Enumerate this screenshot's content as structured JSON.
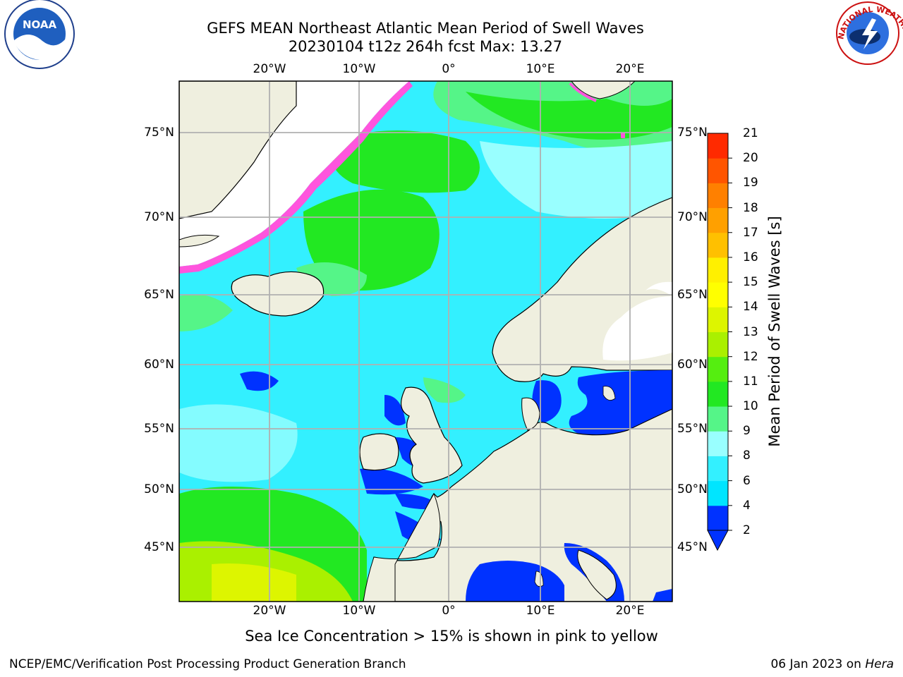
{
  "title": {
    "line1": "GEFS MEAN Northeast Atlantic Mean Period of Swell Waves",
    "line2": "20230104 t12z 264h fcst   Max: 13.27"
  },
  "axes": {
    "lon_labels": [
      "20°W",
      "10°W",
      "0°",
      "10°E",
      "20°E"
    ],
    "lat_labels": [
      "75°N",
      "70°N",
      "65°N",
      "60°N",
      "55°N",
      "50°N",
      "45°N"
    ]
  },
  "colorbar": {
    "title": "Mean Period of Swell Waves [s]",
    "ticks": [
      "2",
      "4",
      "6",
      "8",
      "9",
      "10",
      "11",
      "12",
      "13",
      "14",
      "15",
      "16",
      "17",
      "18",
      "19",
      "20",
      "21"
    ],
    "colors": [
      "#0032ff",
      "#00e5ff",
      "#33f0ff",
      "#99ffff",
      "#55f588",
      "#22e822",
      "#55ee10",
      "#aaf000",
      "#ddf500",
      "#ffff00",
      "#fff000",
      "#ffc000",
      "#ffa000",
      "#ff8000",
      "#ff5500",
      "#ff2a00",
      "#ff0000"
    ]
  },
  "map": {
    "ocean_color": "#33f0ff",
    "land_color": "#efefdf",
    "ice_color": "#ff55dd"
  },
  "note": "Sea Ice Concentration > 15% is shown in pink to yellow",
  "footer": {
    "left": "NCEP/EMC/Verification Post Processing Product Generation Branch",
    "right_date": "06 Jan 2023 on",
    "right_host": "Hera"
  },
  "logos": {
    "noaa": "NOAA",
    "nws": "NATIONAL WEATHER SERVICE"
  }
}
